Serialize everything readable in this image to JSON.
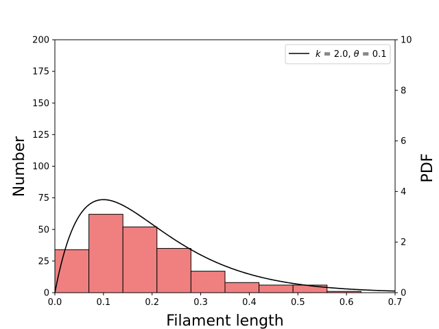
{
  "chart_data": {
    "type": "bar",
    "title": "",
    "xlabel": "Filament length",
    "ylabel": "Number",
    "ylabel_right": "PDF",
    "xlim": [
      0,
      0.7
    ],
    "ylim": [
      0,
      200
    ],
    "ylim_right": [
      0,
      10
    ],
    "xticks": [
      "0.0",
      "0.1",
      "0.2",
      "0.3",
      "0.4",
      "0.5",
      "0.6",
      "0.7"
    ],
    "yticks": [
      "0",
      "25",
      "50",
      "75",
      "100",
      "125",
      "150",
      "175",
      "200"
    ],
    "yticks_right": [
      "0",
      "2",
      "4",
      "6",
      "8",
      "10"
    ],
    "histogram": {
      "bin_edges": [
        0.0,
        0.07,
        0.14,
        0.21,
        0.28,
        0.35,
        0.42,
        0.49,
        0.56,
        0.63
      ],
      "counts": [
        34,
        62,
        52,
        35,
        17,
        8,
        6,
        6,
        1
      ],
      "color": "#f08080",
      "edgecolor": "#000000"
    },
    "curve": {
      "label": "k = 2.0, θ = 0.1",
      "legend_k": "k",
      "legend_k_value": "2.0",
      "legend_theta": "θ",
      "legend_theta_value": "0.1",
      "distribution": "gamma",
      "k": 2.0,
      "theta": 0.1,
      "color": "#000000"
    },
    "legend_position": "top-right"
  }
}
